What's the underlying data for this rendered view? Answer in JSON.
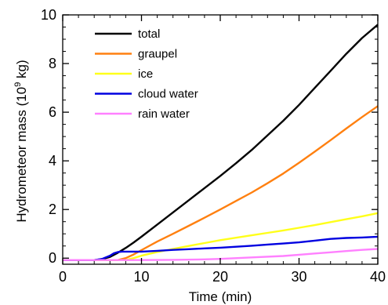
{
  "chart_data": {
    "type": "line",
    "title": "",
    "xlabel": "Time (min)",
    "ylabel_main": "Hydrometeor mass (10",
    "ylabel_exp": "9",
    "ylabel_tail": " kg)",
    "xlim": [
      0,
      40
    ],
    "ylim": [
      -0.25,
      10
    ],
    "xticks": [
      0,
      10,
      20,
      30,
      40
    ],
    "yticks": [
      0,
      2,
      4,
      6,
      8,
      10
    ],
    "grid": false,
    "legend_position": "top-left",
    "series": [
      {
        "name": "total",
        "color": "#000000",
        "x": [
          0,
          4,
          5,
          6,
          7,
          8,
          9,
          10,
          12,
          14,
          16,
          18,
          20,
          22,
          24,
          26,
          28,
          30,
          32,
          34,
          36,
          38,
          40
        ],
        "y": [
          -0.08,
          -0.08,
          -0.04,
          0.05,
          0.22,
          0.42,
          0.64,
          0.88,
          1.38,
          1.88,
          2.38,
          2.88,
          3.38,
          3.9,
          4.45,
          5.05,
          5.65,
          6.3,
          7.0,
          7.7,
          8.4,
          9.05,
          9.6
        ]
      },
      {
        "name": "graupel",
        "color": "#ff8010",
        "x": [
          0,
          7,
          8,
          9,
          10,
          12,
          14,
          16,
          18,
          20,
          22,
          24,
          26,
          28,
          30,
          32,
          34,
          36,
          38,
          40
        ],
        "y": [
          -0.08,
          -0.08,
          0.0,
          0.15,
          0.33,
          0.68,
          1.0,
          1.33,
          1.66,
          2.0,
          2.35,
          2.7,
          3.08,
          3.48,
          3.92,
          4.38,
          4.85,
          5.33,
          5.8,
          6.25
        ]
      },
      {
        "name": "ice",
        "color": "#ffff1a",
        "x": [
          0,
          8,
          9,
          10,
          12,
          14,
          16,
          18,
          20,
          22,
          24,
          26,
          28,
          30,
          32,
          34,
          36,
          38,
          40
        ],
        "y": [
          -0.08,
          -0.08,
          0.0,
          0.1,
          0.25,
          0.38,
          0.5,
          0.62,
          0.74,
          0.84,
          0.94,
          1.04,
          1.14,
          1.25,
          1.36,
          1.48,
          1.6,
          1.72,
          1.85
        ]
      },
      {
        "name": "cloud water",
        "color": "#0000e0",
        "x": [
          0,
          4,
          5,
          6,
          6.5,
          7,
          7.5,
          8,
          10,
          12,
          14,
          16,
          18,
          20,
          22,
          24,
          26,
          28,
          30,
          32,
          34,
          36,
          38,
          40
        ],
        "y": [
          -0.08,
          -0.08,
          -0.03,
          0.1,
          0.2,
          0.25,
          0.27,
          0.27,
          0.27,
          0.3,
          0.34,
          0.37,
          0.4,
          0.43,
          0.47,
          0.51,
          0.56,
          0.6,
          0.65,
          0.72,
          0.79,
          0.83,
          0.85,
          0.88
        ]
      },
      {
        "name": "rain water",
        "color": "#ff80ff",
        "x": [
          0,
          10,
          14,
          18,
          20,
          24,
          28,
          30,
          32,
          34,
          36,
          38,
          40
        ],
        "y": [
          -0.08,
          -0.08,
          -0.07,
          -0.05,
          -0.03,
          0.03,
          0.09,
          0.14,
          0.19,
          0.24,
          0.29,
          0.34,
          0.38
        ]
      }
    ]
  }
}
